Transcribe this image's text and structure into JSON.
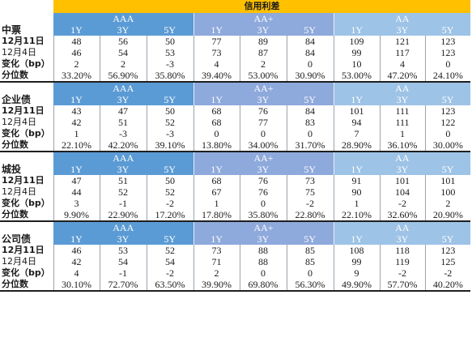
{
  "header": {
    "title": "信用利差"
  },
  "ratings": [
    "AAA",
    "AA+",
    "AA"
  ],
  "tenors": [
    "1Y",
    "3Y",
    "5Y"
  ],
  "sections": [
    {
      "name": "中票",
      "rows": [
        {
          "label": "12月11日",
          "values": [
            "48",
            "56",
            "50",
            "77",
            "89",
            "84",
            "109",
            "121",
            "123"
          ]
        },
        {
          "label": "12月4日",
          "values": [
            "46",
            "54",
            "53",
            "73",
            "87",
            "84",
            "99",
            "117",
            "123"
          ]
        },
        {
          "label": "变化（bp）",
          "values": [
            "2",
            "2",
            "-3",
            "4",
            "2",
            "0",
            "10",
            "4",
            "0"
          ]
        },
        {
          "label": "分位数",
          "values": [
            "33.20%",
            "56.90%",
            "35.80%",
            "39.40%",
            "53.00%",
            "30.90%",
            "53.00%",
            "47.20%",
            "24.10%"
          ]
        }
      ]
    },
    {
      "name": "企业债",
      "rows": [
        {
          "label": "12月11日",
          "values": [
            "43",
            "47",
            "50",
            "68",
            "76",
            "84",
            "101",
            "111",
            "123"
          ]
        },
        {
          "label": "12月4日",
          "values": [
            "42",
            "51",
            "52",
            "68",
            "77",
            "83",
            "94",
            "111",
            "122"
          ]
        },
        {
          "label": "变化（bp）",
          "values": [
            "1",
            "-3",
            "-3",
            "0",
            "0",
            "0",
            "7",
            "1",
            "0"
          ]
        },
        {
          "label": "分位数",
          "values": [
            "22.10%",
            "42.20%",
            "39.10%",
            "13.80%",
            "34.00%",
            "31.70%",
            "28.90%",
            "36.10%",
            "30.00%"
          ]
        }
      ]
    },
    {
      "name": "城投",
      "rows": [
        {
          "label": "12月11日",
          "values": [
            "47",
            "51",
            "50",
            "68",
            "76",
            "73",
            "91",
            "101",
            "101"
          ]
        },
        {
          "label": "12月4日",
          "values": [
            "44",
            "52",
            "52",
            "67",
            "76",
            "75",
            "90",
            "104",
            "100"
          ]
        },
        {
          "label": "变化（bp）",
          "values": [
            "3",
            "-1",
            "-2",
            "1",
            "0",
            "-2",
            "1",
            "-2",
            "2"
          ]
        },
        {
          "label": "分位数",
          "values": [
            "9.90%",
            "22.90%",
            "17.20%",
            "17.80%",
            "35.80%",
            "22.80%",
            "22.10%",
            "32.60%",
            "20.90%"
          ]
        }
      ]
    },
    {
      "name": "公司债",
      "rows": [
        {
          "label": "12月11日",
          "values": [
            "46",
            "53",
            "52",
            "73",
            "88",
            "85",
            "108",
            "118",
            "123"
          ]
        },
        {
          "label": "12月4日",
          "values": [
            "42",
            "54",
            "54",
            "71",
            "88",
            "85",
            "99",
            "119",
            "125"
          ]
        },
        {
          "label": "变化（bp）",
          "values": [
            "4",
            "-1",
            "-2",
            "2",
            "0",
            "0",
            "9",
            "-2",
            "-2"
          ]
        },
        {
          "label": "分位数",
          "values": [
            "30.10%",
            "72.70%",
            "63.50%",
            "39.90%",
            "69.80%",
            "56.30%",
            "49.90%",
            "57.70%",
            "40.20%"
          ]
        }
      ]
    }
  ]
}
